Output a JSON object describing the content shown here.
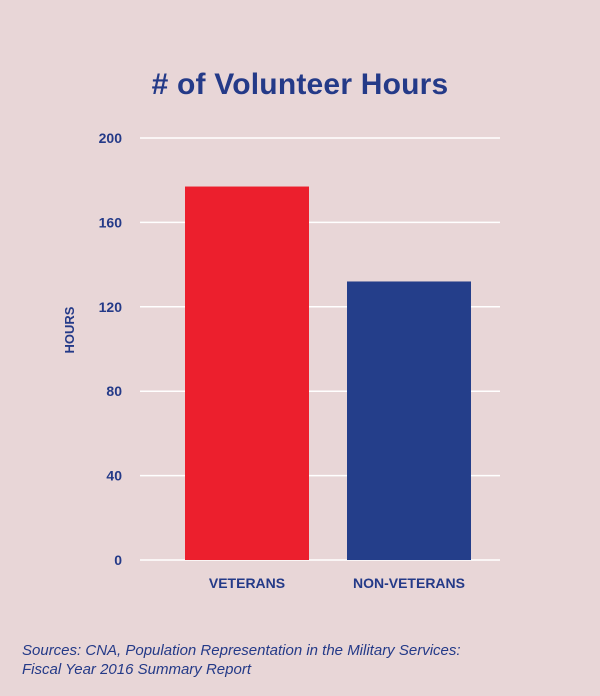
{
  "chart_data": {
    "type": "bar",
    "title": "# of Volunteer Hours",
    "ylabel": "HOURS",
    "xlabel": "",
    "categories": [
      "VETERANS",
      "NON-VETERANS"
    ],
    "values": [
      177,
      132
    ],
    "ylim": [
      0,
      200
    ],
    "yticks": [
      0,
      40,
      80,
      120,
      160,
      200
    ],
    "ytick_labels": [
      "0",
      "40",
      "80",
      "120",
      "160",
      "200"
    ],
    "grid": true,
    "colors": [
      "#ec1f2d",
      "#243e8a"
    ],
    "gridline_color": "#ffffff",
    "text_color": "#243a88"
  },
  "source": {
    "line1": "Sources: CNA, Population Representation in the Military Services:",
    "line2": "Fiscal Year 2016 Summary Report"
  }
}
